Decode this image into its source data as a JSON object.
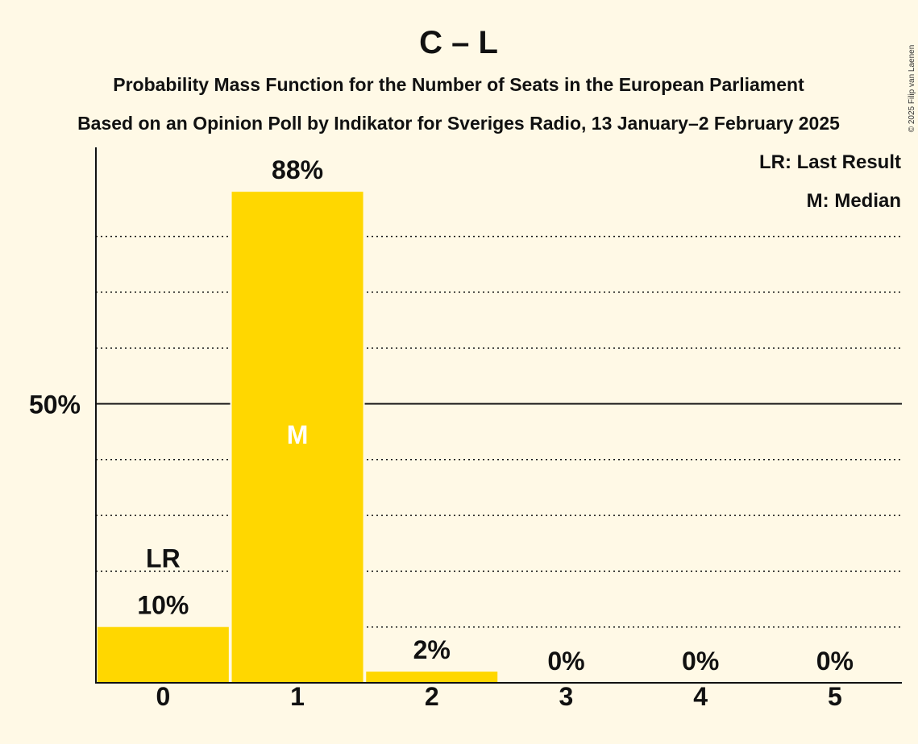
{
  "chart_data": {
    "type": "bar",
    "title": "C – L",
    "subtitle1": "Probability Mass Function for the Number of Seats in the European Parliament",
    "subtitle2": "Based on an Opinion Poll by Indikator for Sveriges Radio, 13 January–2 February 2025",
    "copyright": "© 2025 Filip van Laenen",
    "legend": [
      "LR: Last Result",
      "M: Median"
    ],
    "legend_position": "top-right",
    "categories": [
      "0",
      "1",
      "2",
      "3",
      "4",
      "5"
    ],
    "values": [
      10,
      88,
      2,
      0,
      0,
      0
    ],
    "value_labels": [
      "10%",
      "88%",
      "2%",
      "0%",
      "0%",
      "0%"
    ],
    "last_result_category": "0",
    "last_result_marker": "LR",
    "median_category": "1",
    "median_marker": "M",
    "y_tick_labels": [
      {
        "value": 50,
        "label": "50%"
      }
    ],
    "ylim": [
      0,
      100
    ],
    "minor_gridlines": [
      10,
      20,
      30,
      40,
      60,
      70,
      80
    ],
    "major_gridlines": [
      50
    ],
    "bar_color": "#FFD700",
    "background_color": "#FFF9E6"
  }
}
